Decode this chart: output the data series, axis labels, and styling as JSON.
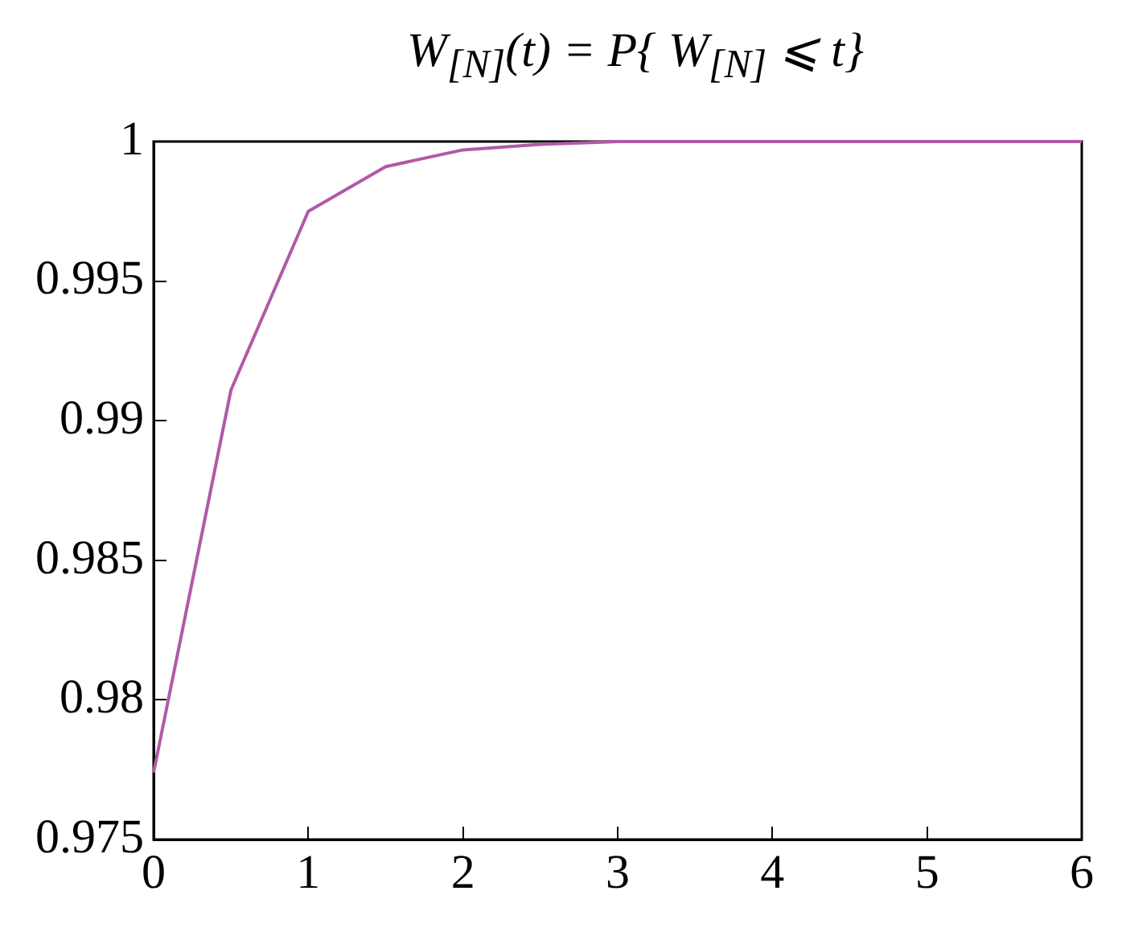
{
  "chart_data": {
    "type": "line",
    "title": "W$_{[N]}$(t) = P{ W$_{[N]}$ ⩽ t}",
    "x": [
      0,
      0.5,
      1,
      1.5,
      2,
      2.5,
      3,
      3.5,
      4,
      4.5,
      5,
      5.5,
      6
    ],
    "series": [
      {
        "color": "#b05aa8",
        "values": [
          0.9774,
          0.9911,
          0.9975,
          0.9991,
          0.9997,
          0.9999,
          1,
          1,
          1,
          1,
          1,
          1,
          1
        ]
      }
    ],
    "xlim": [
      0,
      6
    ],
    "xticks": [
      0,
      1,
      2,
      3,
      4,
      5,
      6
    ],
    "ylim": [
      0.975,
      1
    ],
    "yticks": [
      0.975,
      0.98,
      0.985,
      0.99,
      0.995,
      1
    ],
    "grid": false,
    "legend": false,
    "marker": "none",
    "line_style": "solid"
  }
}
